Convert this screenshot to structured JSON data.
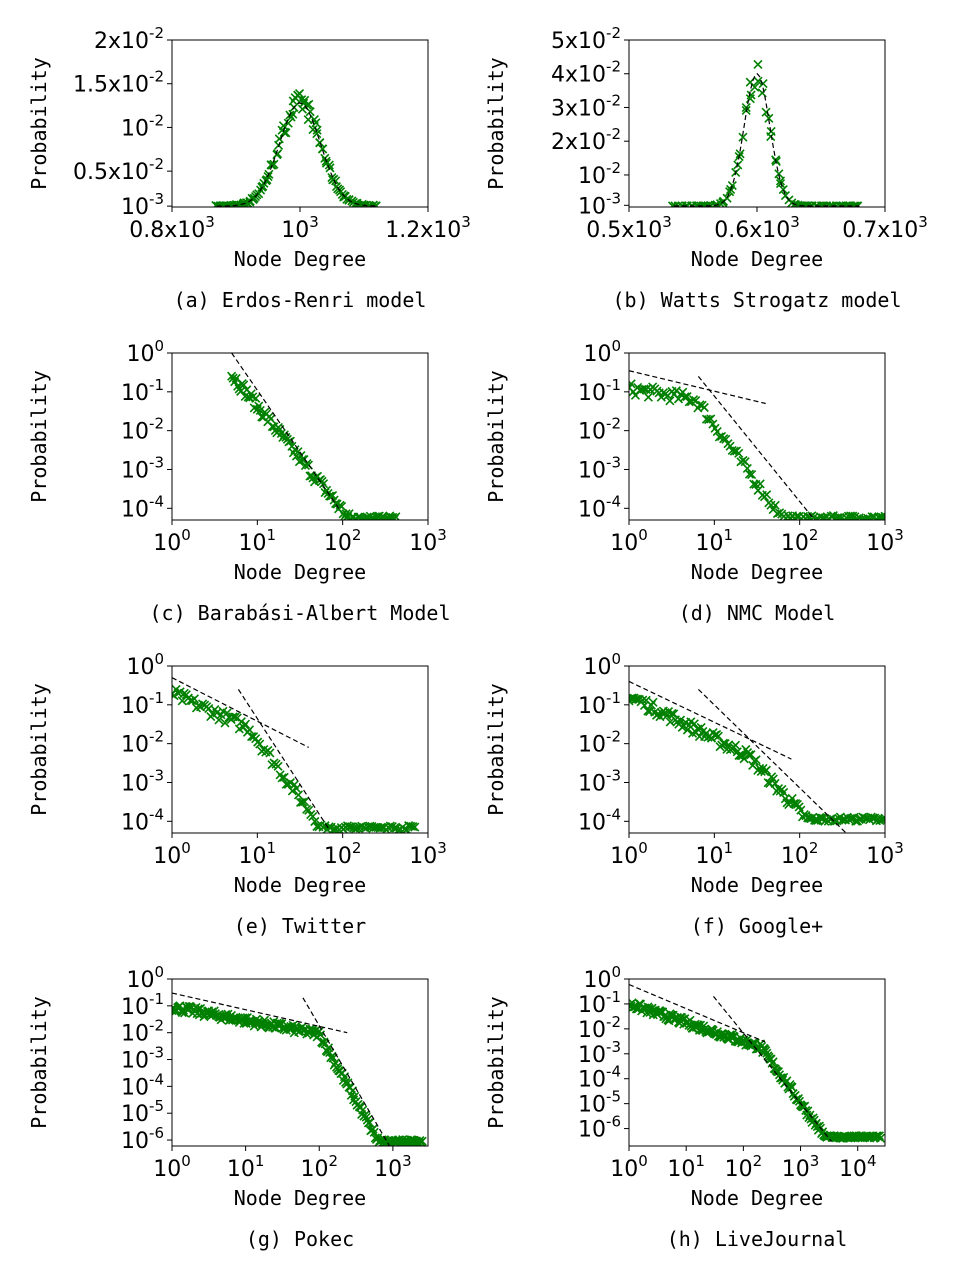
{
  "marker_color": "#008000",
  "fit_line_color": "#000000",
  "chart_data": [
    {
      "type": "scatter",
      "caption": "(a) Erdos-Renri model",
      "xlabel": "Node Degree",
      "ylabel": "Probability",
      "x_scale": "linear",
      "y_scale": "linear",
      "xlim": [
        800,
        1200
      ],
      "ylim": [
        0.0009,
        0.02
      ],
      "xticks": [
        {
          "v": 800,
          "t": "0.8x10",
          "e": "3"
        },
        {
          "v": 1000,
          "t": "10",
          "e": "3"
        },
        {
          "v": 1200,
          "t": "1.2x10",
          "e": "3"
        }
      ],
      "yticks": [
        {
          "v": 0.001,
          "t": "10",
          "e": "-3"
        },
        {
          "v": 0.005,
          "t": "0.5x10",
          "e": "-2"
        },
        {
          "v": 0.01,
          "t": "10",
          "e": "-2"
        },
        {
          "v": 0.015,
          "t": "1.5x10",
          "e": "-2"
        },
        {
          "v": 0.02,
          "t": "2x10",
          "e": "-2"
        }
      ],
      "distribution": {
        "kind": "gaussian",
        "mean": 1000,
        "sd": 32,
        "peak": 0.0128,
        "floor": 0.001,
        "x_range": [
          870,
          1120
        ],
        "n": 120
      },
      "fit_lines": [
        {
          "kind": "gaussian",
          "mean": 1000,
          "sd": 32,
          "peak": 0.0128,
          "floor": 0.001
        }
      ]
    },
    {
      "type": "scatter",
      "caption": "(b) Watts Strogatz model",
      "xlabel": "Node Degree",
      "ylabel": "Probability",
      "x_scale": "linear",
      "y_scale": "linear",
      "xlim": [
        500,
        700
      ],
      "ylim": [
        0.0005,
        0.05
      ],
      "xticks": [
        {
          "v": 500,
          "t": "0.5x10",
          "e": "3"
        },
        {
          "v": 600,
          "t": "0.6x10",
          "e": "3"
        },
        {
          "v": 700,
          "t": "0.7x10",
          "e": "3"
        }
      ],
      "yticks": [
        {
          "v": 0.001,
          "t": "10",
          "e": "-3"
        },
        {
          "v": 0.01,
          "t": "10",
          "e": "-2"
        },
        {
          "v": 0.02,
          "t": "2x10",
          "e": "-2"
        },
        {
          "v": 0.03,
          "t": "3x10",
          "e": "-2"
        },
        {
          "v": 0.04,
          "t": "4x10",
          "e": "-2"
        },
        {
          "v": 0.05,
          "t": "5x10",
          "e": "-2"
        }
      ],
      "distribution": {
        "kind": "gaussian",
        "mean": 600,
        "sd": 10,
        "peak": 0.04,
        "floor": 0.0008,
        "x_range": [
          535,
          680
        ],
        "n": 90
      },
      "fit_lines": [
        {
          "kind": "gaussian",
          "mean": 600,
          "sd": 10,
          "peak": 0.04,
          "floor": 0.0008
        }
      ]
    },
    {
      "type": "scatter",
      "caption": "(c) Barabási-Albert Model",
      "xlabel": "Node Degree",
      "ylabel": "Probability",
      "x_scale": "log",
      "y_scale": "log",
      "xlim": [
        1,
        1000
      ],
      "ylim": [
        5e-05,
        1
      ],
      "xticks": [
        {
          "v": 1,
          "t": "10",
          "e": "0"
        },
        {
          "v": 10,
          "t": "10",
          "e": "1"
        },
        {
          "v": 100,
          "t": "10",
          "e": "2"
        },
        {
          "v": 1000,
          "t": "10",
          "e": "3"
        }
      ],
      "yticks": [
        {
          "v": 1,
          "t": "10",
          "e": "0"
        },
        {
          "v": 0.1,
          "t": "10",
          "e": "-1"
        },
        {
          "v": 0.01,
          "t": "10",
          "e": "-2"
        },
        {
          "v": 0.001,
          "t": "10",
          "e": "-3"
        },
        {
          "v": 0.0001,
          "t": "10",
          "e": "-4"
        }
      ],
      "distribution": {
        "kind": "powerlaw",
        "x_start": 5,
        "y_start": 0.28,
        "slope": -2.7,
        "knee": 0,
        "x_end": 420,
        "floor": 5e-05,
        "n": 110
      },
      "fit_lines": [
        {
          "x": [
            5,
            90
          ],
          "y": [
            1,
            0.0001
          ]
        }
      ]
    },
    {
      "type": "scatter",
      "caption": "(d) NMC Model",
      "xlabel": "Node Degree",
      "ylabel": "Probability",
      "x_scale": "log",
      "y_scale": "log",
      "xlim": [
        1,
        1000
      ],
      "ylim": [
        5e-05,
        1
      ],
      "xticks": [
        {
          "v": 1,
          "t": "10",
          "e": "0"
        },
        {
          "v": 10,
          "t": "10",
          "e": "1"
        },
        {
          "v": 100,
          "t": "10",
          "e": "2"
        },
        {
          "v": 1000,
          "t": "10",
          "e": "3"
        }
      ],
      "yticks": [
        {
          "v": 1,
          "t": "10",
          "e": "0"
        },
        {
          "v": 0.1,
          "t": "10",
          "e": "-1"
        },
        {
          "v": 0.01,
          "t": "10",
          "e": "-2"
        },
        {
          "v": 0.001,
          "t": "10",
          "e": "-3"
        },
        {
          "v": 0.0001,
          "t": "10",
          "e": "-4"
        }
      ],
      "distribution": {
        "kind": "powerlaw",
        "x_start": 1,
        "y_start": 0.12,
        "slope": -0.35,
        "knee": 6,
        "slope2": -3.0,
        "x_end": 1000,
        "floor": 5e-05,
        "n": 120
      },
      "fit_lines": [
        {
          "x": [
            1,
            40
          ],
          "y": [
            0.35,
            0.05
          ]
        },
        {
          "x": [
            6.5,
            150
          ],
          "y": [
            0.25,
            5e-05
          ]
        }
      ]
    },
    {
      "type": "scatter",
      "caption": "(e) Twitter",
      "xlabel": "Node Degree",
      "ylabel": "Probability",
      "x_scale": "log",
      "y_scale": "log",
      "xlim": [
        1,
        1000
      ],
      "ylim": [
        5e-05,
        1
      ],
      "xticks": [
        {
          "v": 1,
          "t": "10",
          "e": "0"
        },
        {
          "v": 10,
          "t": "10",
          "e": "1"
        },
        {
          "v": 100,
          "t": "10",
          "e": "2"
        },
        {
          "v": 1000,
          "t": "10",
          "e": "3"
        }
      ],
      "yticks": [
        {
          "v": 1,
          "t": "10",
          "e": "0"
        },
        {
          "v": 0.1,
          "t": "10",
          "e": "-1"
        },
        {
          "v": 0.01,
          "t": "10",
          "e": "-2"
        },
        {
          "v": 0.001,
          "t": "10",
          "e": "-3"
        },
        {
          "v": 0.0001,
          "t": "10",
          "e": "-4"
        }
      ],
      "distribution": {
        "kind": "powerlaw",
        "x_start": 1,
        "y_start": 0.2,
        "slope": -1.0,
        "knee": 8,
        "slope2": -3.0,
        "x_end": 700,
        "floor": 6e-05,
        "n": 120
      },
      "fit_lines": [
        {
          "x": [
            1,
            40
          ],
          "y": [
            0.5,
            0.008
          ]
        },
        {
          "x": [
            6,
            70
          ],
          "y": [
            0.25,
            6e-05
          ]
        }
      ]
    },
    {
      "type": "scatter",
      "caption": "(f) Google+",
      "xlabel": "Node Degree",
      "ylabel": "Probability",
      "x_scale": "log",
      "y_scale": "log",
      "xlim": [
        1,
        1000
      ],
      "ylim": [
        5e-05,
        1
      ],
      "xticks": [
        {
          "v": 1,
          "t": "10",
          "e": "0"
        },
        {
          "v": 10,
          "t": "10",
          "e": "1"
        },
        {
          "v": 100,
          "t": "10",
          "e": "2"
        },
        {
          "v": 1000,
          "t": "10",
          "e": "3"
        }
      ],
      "yticks": [
        {
          "v": 1,
          "t": "10",
          "e": "0"
        },
        {
          "v": 0.1,
          "t": "10",
          "e": "-1"
        },
        {
          "v": 0.01,
          "t": "10",
          "e": "-2"
        },
        {
          "v": 0.001,
          "t": "10",
          "e": "-3"
        },
        {
          "v": 0.0001,
          "t": "10",
          "e": "-4"
        }
      ],
      "distribution": {
        "kind": "powerlaw",
        "x_start": 1,
        "y_start": 0.17,
        "slope": -1.1,
        "knee": 25,
        "slope2": -2.4,
        "x_end": 1000,
        "floor": 0.0001,
        "n": 150
      },
      "fit_lines": [
        {
          "x": [
            1,
            80
          ],
          "y": [
            0.4,
            0.004
          ]
        },
        {
          "x": [
            6.5,
            350
          ],
          "y": [
            0.25,
            5e-05
          ]
        }
      ]
    },
    {
      "type": "scatter",
      "caption": "(g) Pokec",
      "xlabel": "Node Degree",
      "ylabel": "Probability",
      "x_scale": "log",
      "y_scale": "log",
      "xlim": [
        1,
        3000
      ],
      "ylim": [
        6e-07,
        1
      ],
      "xticks": [
        {
          "v": 1,
          "t": "10",
          "e": "0"
        },
        {
          "v": 10,
          "t": "10",
          "e": "1"
        },
        {
          "v": 100,
          "t": "10",
          "e": "2"
        },
        {
          "v": 1000,
          "t": "10",
          "e": "3"
        }
      ],
      "yticks": [
        {
          "v": 1,
          "t": "10",
          "e": "0"
        },
        {
          "v": 0.1,
          "t": "10",
          "e": "-1"
        },
        {
          "v": 0.01,
          "t": "10",
          "e": "-2"
        },
        {
          "v": 0.001,
          "t": "10",
          "e": "-3"
        },
        {
          "v": 0.0001,
          "t": "10",
          "e": "-4"
        },
        {
          "v": 1e-05,
          "t": "10",
          "e": "-5"
        },
        {
          "v": 1e-06,
          "t": "10",
          "e": "-6"
        }
      ],
      "distribution": {
        "kind": "powerlaw",
        "x_start": 1,
        "y_start": 0.09,
        "slope": -0.5,
        "knee": 100,
        "slope2": -5.0,
        "x_end": 2500,
        "floor": 8e-07,
        "n": 220
      },
      "fit_lines": [
        {
          "x": [
            1,
            240
          ],
          "y": [
            0.3,
            0.01
          ]
        },
        {
          "x": [
            60,
            900
          ],
          "y": [
            0.2,
            6e-07
          ]
        }
      ]
    },
    {
      "type": "scatter",
      "caption": "(h) LiveJournal",
      "xlabel": "Node Degree",
      "ylabel": "Probability",
      "x_scale": "log",
      "y_scale": "log",
      "xlim": [
        1,
        30000
      ],
      "ylim": [
        2e-07,
        1
      ],
      "xticks": [
        {
          "v": 1,
          "t": "10",
          "e": "0"
        },
        {
          "v": 10,
          "t": "10",
          "e": "1"
        },
        {
          "v": 100,
          "t": "10",
          "e": "2"
        },
        {
          "v": 1000,
          "t": "10",
          "e": "3"
        },
        {
          "v": 10000,
          "t": "10",
          "e": "4"
        }
      ],
      "yticks": [
        {
          "v": 1,
          "t": "10",
          "e": "0"
        },
        {
          "v": 0.1,
          "t": "10",
          "e": "-1"
        },
        {
          "v": 0.01,
          "t": "10",
          "e": "-2"
        },
        {
          "v": 0.001,
          "t": "10",
          "e": "-3"
        },
        {
          "v": 0.0001,
          "t": "10",
          "e": "-4"
        },
        {
          "v": 1e-05,
          "t": "10",
          "e": "-5"
        },
        {
          "v": 1e-06,
          "t": "10",
          "e": "-6"
        }
      ],
      "distribution": {
        "kind": "powerlaw",
        "x_start": 1,
        "y_start": 0.1,
        "slope": -0.75,
        "knee": 200,
        "slope2": -3.2,
        "x_end": 25000,
        "floor": 4e-07,
        "n": 240
      },
      "fit_lines": [
        {
          "x": [
            1,
            240
          ],
          "y": [
            0.6,
            0.003
          ]
        },
        {
          "x": [
            30,
            3500
          ],
          "y": [
            0.2,
            3e-07
          ]
        }
      ]
    }
  ]
}
